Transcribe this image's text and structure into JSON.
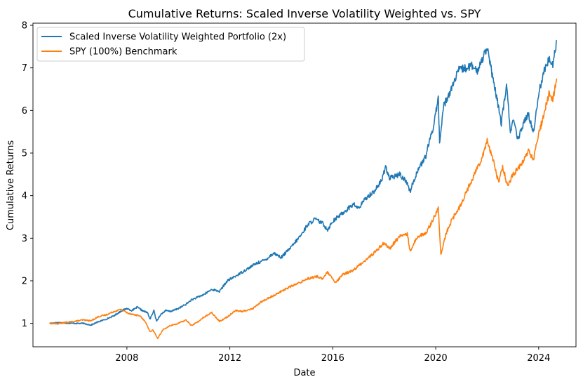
{
  "chart_data": {
    "type": "line",
    "title": "Cumulative Returns: Scaled Inverse Volatility Weighted vs. SPY",
    "xlabel": "Date",
    "ylabel": "Cumulative Returns",
    "xlim": [
      2004.35,
      2025.45
    ],
    "ylim": [
      0.45,
      8.05
    ],
    "x_ticks": [
      {
        "value": 2008,
        "label": "2008"
      },
      {
        "value": 2012,
        "label": "2012"
      },
      {
        "value": 2016,
        "label": "2016"
      },
      {
        "value": 2020,
        "label": "2020"
      },
      {
        "value": 2024,
        "label": "2024"
      }
    ],
    "y_ticks": [
      {
        "value": 1,
        "label": "1"
      },
      {
        "value": 2,
        "label": "2"
      },
      {
        "value": 3,
        "label": "3"
      },
      {
        "value": 4,
        "label": "4"
      },
      {
        "value": 5,
        "label": "5"
      },
      {
        "value": 6,
        "label": "6"
      },
      {
        "value": 7,
        "label": "7"
      },
      {
        "value": 8,
        "label": "8"
      }
    ],
    "grid": false,
    "legend_position": "upper-left",
    "series": [
      {
        "name": "Scaled Inverse Volatility Weighted Portfolio (2x)",
        "color": "#1f77b4",
        "points": [
          [
            2005.0,
            1.0
          ],
          [
            2005.3,
            1.02
          ],
          [
            2005.6,
            1.01
          ],
          [
            2006.0,
            1.0
          ],
          [
            2006.3,
            1.0
          ],
          [
            2006.6,
            0.96
          ],
          [
            2006.9,
            1.04
          ],
          [
            2007.2,
            1.1
          ],
          [
            2007.5,
            1.18
          ],
          [
            2007.8,
            1.3
          ],
          [
            2008.0,
            1.35
          ],
          [
            2008.2,
            1.3
          ],
          [
            2008.4,
            1.38
          ],
          [
            2008.6,
            1.3
          ],
          [
            2008.8,
            1.25
          ],
          [
            2008.9,
            1.1
          ],
          [
            2009.05,
            1.3
          ],
          [
            2009.15,
            1.05
          ],
          [
            2009.3,
            1.2
          ],
          [
            2009.5,
            1.3
          ],
          [
            2009.7,
            1.28
          ],
          [
            2010.0,
            1.35
          ],
          [
            2010.3,
            1.45
          ],
          [
            2010.5,
            1.55
          ],
          [
            2010.7,
            1.6
          ],
          [
            2011.0,
            1.68
          ],
          [
            2011.3,
            1.8
          ],
          [
            2011.6,
            1.75
          ],
          [
            2011.9,
            2.0
          ],
          [
            2012.2,
            2.1
          ],
          [
            2012.6,
            2.25
          ],
          [
            2013.0,
            2.4
          ],
          [
            2013.4,
            2.5
          ],
          [
            2013.7,
            2.65
          ],
          [
            2014.0,
            2.55
          ],
          [
            2014.4,
            2.8
          ],
          [
            2014.8,
            3.1
          ],
          [
            2015.0,
            3.3
          ],
          [
            2015.3,
            3.45
          ],
          [
            2015.6,
            3.35
          ],
          [
            2015.8,
            3.2
          ],
          [
            2016.0,
            3.4
          ],
          [
            2016.4,
            3.6
          ],
          [
            2016.8,
            3.8
          ],
          [
            2017.0,
            3.7
          ],
          [
            2017.3,
            3.95
          ],
          [
            2017.6,
            4.1
          ],
          [
            2017.9,
            4.35
          ],
          [
            2018.05,
            4.7
          ],
          [
            2018.2,
            4.4
          ],
          [
            2018.6,
            4.5
          ],
          [
            2018.9,
            4.3
          ],
          [
            2019.0,
            4.1
          ],
          [
            2019.3,
            4.6
          ],
          [
            2019.6,
            4.9
          ],
          [
            2019.9,
            5.6
          ],
          [
            2020.1,
            6.3
          ],
          [
            2020.15,
            5.2
          ],
          [
            2020.3,
            6.1
          ],
          [
            2020.6,
            6.5
          ],
          [
            2020.9,
            6.95
          ],
          [
            2021.2,
            7.0
          ],
          [
            2021.4,
            7.05
          ],
          [
            2021.6,
            6.9
          ],
          [
            2021.8,
            7.2
          ],
          [
            2022.0,
            7.5
          ],
          [
            2022.2,
            6.8
          ],
          [
            2022.4,
            6.2
          ],
          [
            2022.55,
            5.7
          ],
          [
            2022.75,
            6.6
          ],
          [
            2022.9,
            5.5
          ],
          [
            2023.0,
            5.8
          ],
          [
            2023.2,
            5.3
          ],
          [
            2023.4,
            5.7
          ],
          [
            2023.6,
            5.9
          ],
          [
            2023.8,
            5.5
          ],
          [
            2024.0,
            6.4
          ],
          [
            2024.2,
            6.9
          ],
          [
            2024.4,
            7.2
          ],
          [
            2024.55,
            7.1
          ],
          [
            2024.7,
            7.65
          ]
        ]
      },
      {
        "name": "SPY (100%) Benchmark",
        "color": "#ff7f0e",
        "points": [
          [
            2005.0,
            1.0
          ],
          [
            2005.3,
            0.99
          ],
          [
            2005.6,
            1.02
          ],
          [
            2006.0,
            1.05
          ],
          [
            2006.3,
            1.08
          ],
          [
            2006.6,
            1.06
          ],
          [
            2006.9,
            1.16
          ],
          [
            2007.2,
            1.2
          ],
          [
            2007.5,
            1.28
          ],
          [
            2007.8,
            1.33
          ],
          [
            2008.0,
            1.25
          ],
          [
            2008.3,
            1.2
          ],
          [
            2008.5,
            1.18
          ],
          [
            2008.7,
            1.05
          ],
          [
            2008.9,
            0.8
          ],
          [
            2009.0,
            0.85
          ],
          [
            2009.2,
            0.65
          ],
          [
            2009.4,
            0.85
          ],
          [
            2009.7,
            0.95
          ],
          [
            2010.0,
            1.0
          ],
          [
            2010.3,
            1.08
          ],
          [
            2010.5,
            0.95
          ],
          [
            2010.8,
            1.05
          ],
          [
            2011.0,
            1.15
          ],
          [
            2011.3,
            1.25
          ],
          [
            2011.6,
            1.05
          ],
          [
            2011.9,
            1.15
          ],
          [
            2012.2,
            1.3
          ],
          [
            2012.5,
            1.28
          ],
          [
            2012.9,
            1.35
          ],
          [
            2013.2,
            1.5
          ],
          [
            2013.6,
            1.62
          ],
          [
            2013.9,
            1.72
          ],
          [
            2014.3,
            1.85
          ],
          [
            2014.7,
            1.95
          ],
          [
            2015.0,
            2.05
          ],
          [
            2015.4,
            2.1
          ],
          [
            2015.6,
            2.05
          ],
          [
            2015.8,
            2.2
          ],
          [
            2016.1,
            1.95
          ],
          [
            2016.4,
            2.15
          ],
          [
            2016.8,
            2.25
          ],
          [
            2017.2,
            2.45
          ],
          [
            2017.6,
            2.65
          ],
          [
            2018.0,
            2.9
          ],
          [
            2018.2,
            2.75
          ],
          [
            2018.6,
            3.05
          ],
          [
            2018.9,
            3.1
          ],
          [
            2019.0,
            2.7
          ],
          [
            2019.3,
            3.05
          ],
          [
            2019.6,
            3.1
          ],
          [
            2019.9,
            3.45
          ],
          [
            2020.1,
            3.7
          ],
          [
            2020.2,
            2.6
          ],
          [
            2020.4,
            3.1
          ],
          [
            2020.6,
            3.4
          ],
          [
            2020.9,
            3.7
          ],
          [
            2021.2,
            4.1
          ],
          [
            2021.5,
            4.5
          ],
          [
            2021.8,
            4.9
          ],
          [
            2022.0,
            5.3
          ],
          [
            2022.2,
            4.9
          ],
          [
            2022.45,
            4.3
          ],
          [
            2022.6,
            4.7
          ],
          [
            2022.8,
            4.2
          ],
          [
            2023.0,
            4.5
          ],
          [
            2023.3,
            4.7
          ],
          [
            2023.6,
            5.05
          ],
          [
            2023.8,
            4.85
          ],
          [
            2024.0,
            5.45
          ],
          [
            2024.2,
            5.9
          ],
          [
            2024.4,
            6.4
          ],
          [
            2024.55,
            6.25
          ],
          [
            2024.7,
            6.75
          ]
        ]
      }
    ]
  }
}
